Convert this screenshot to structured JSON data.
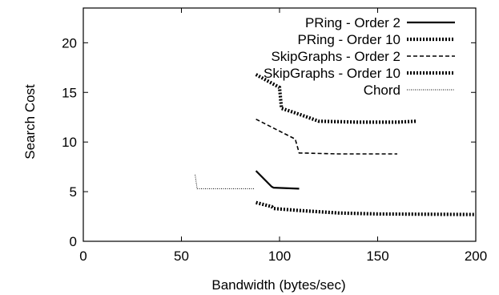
{
  "chart_data": {
    "type": "line",
    "title": "",
    "xlabel": "Bandwidth (bytes/sec)",
    "ylabel": "Search Cost",
    "xlim": [
      0,
      200
    ],
    "ylim": [
      0,
      23.5
    ],
    "xticks": [
      0,
      50,
      100,
      150,
      200
    ],
    "yticks": [
      0,
      5,
      10,
      15,
      20
    ],
    "grid": false,
    "legend_position": "top-right",
    "series": [
      {
        "name": "PRing - Order 2",
        "style": "solid-thick",
        "color": "#000000",
        "points": [
          [
            88,
            7.1
          ],
          [
            96,
            5.5
          ],
          [
            97,
            5.4
          ],
          [
            110,
            5.3
          ]
        ]
      },
      {
        "name": "PRing - Order 10",
        "style": "dotted-thick",
        "color": "#000000",
        "points": [
          [
            88,
            3.9
          ],
          [
            96,
            3.5
          ],
          [
            97,
            3.3
          ],
          [
            110,
            3.1
          ],
          [
            130,
            2.85
          ],
          [
            150,
            2.75
          ],
          [
            200,
            2.7
          ]
        ]
      },
      {
        "name": "SkipGraphs - Order 2",
        "style": "dashed",
        "color": "#000000",
        "points": [
          [
            88,
            12.3
          ],
          [
            108,
            10.3
          ],
          [
            110,
            8.9
          ],
          [
            130,
            8.8
          ],
          [
            160,
            8.8
          ]
        ]
      },
      {
        "name": "SkipGraphs - Order 10",
        "style": "dotted-thick",
        "color": "#000000",
        "points": [
          [
            88,
            16.8
          ],
          [
            100,
            15.5
          ],
          [
            101,
            13.4
          ],
          [
            110,
            12.8
          ],
          [
            120,
            12.1
          ],
          [
            140,
            12.0
          ],
          [
            160,
            12.0
          ],
          [
            170,
            12.1
          ]
        ]
      },
      {
        "name": "Chord",
        "style": "dotted-thin",
        "color": "#000000",
        "points": [
          [
            57,
            6.7
          ],
          [
            58,
            5.3
          ],
          [
            87,
            5.3
          ]
        ]
      }
    ]
  }
}
